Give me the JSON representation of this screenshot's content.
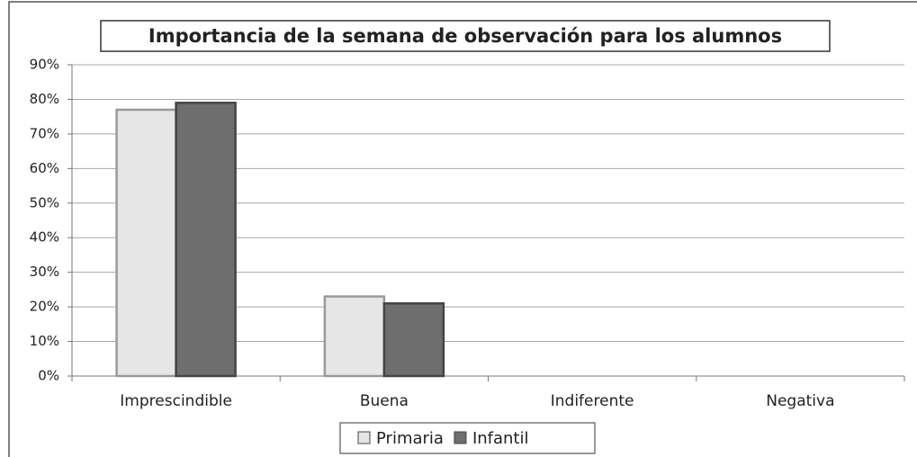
{
  "chart_data": {
    "type": "bar",
    "title": "Importancia de la semana de observación para los alumnos",
    "categories": [
      "Imprescindible",
      "Buena",
      "Indiferente",
      "Negativa"
    ],
    "series": [
      {
        "name": "Primaria",
        "color": "#e6e6e6",
        "values": [
          77,
          23,
          0,
          0
        ]
      },
      {
        "name": "Infantil",
        "color": "#6e6e6e",
        "values": [
          79,
          21,
          0,
          0
        ]
      }
    ],
    "ylim": [
      0,
      90
    ],
    "yticks": [
      {
        "value": 0,
        "label": "0%"
      },
      {
        "value": 10,
        "label": "10%"
      },
      {
        "value": 20,
        "label": "20%"
      },
      {
        "value": 30,
        "label": "30%"
      },
      {
        "value": 40,
        "label": "40%"
      },
      {
        "value": 50,
        "label": "50%"
      },
      {
        "value": 60,
        "label": "60%"
      },
      {
        "value": 70,
        "label": "70%"
      },
      {
        "value": 80,
        "label": "80%"
      },
      {
        "value": 90,
        "label": "90%"
      }
    ],
    "grid": true,
    "legend": "bottom"
  }
}
